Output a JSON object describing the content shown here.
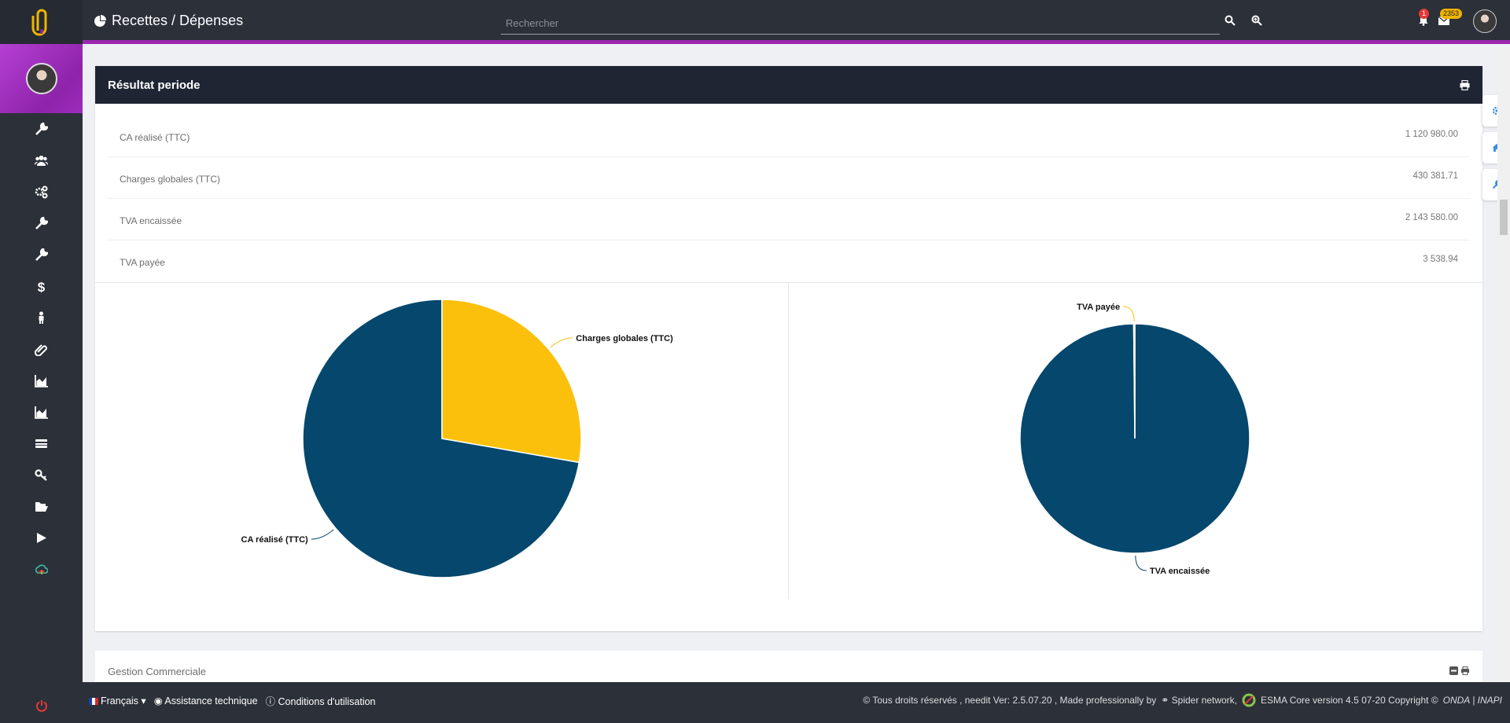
{
  "app": {
    "brand_color": "#f0b400",
    "accent": "#9b27af",
    "dark": "#2c3039"
  },
  "header": {
    "title": "Recettes / Dépenses",
    "search_placeholder": "Rechercher",
    "notifications_count": "1",
    "messages_count": "2353"
  },
  "sidebar": {
    "items": [
      {
        "icon": "wrench-icon"
      },
      {
        "icon": "users-icon"
      },
      {
        "icon": "cogs-icon"
      },
      {
        "icon": "wrench-icon"
      },
      {
        "icon": "wrench-icon"
      },
      {
        "icon": "dollar-icon"
      },
      {
        "icon": "male-icon"
      },
      {
        "icon": "paperclip-icon"
      },
      {
        "icon": "area-chart-icon"
      },
      {
        "icon": "area-chart-icon"
      },
      {
        "icon": "credit-card-icon"
      },
      {
        "icon": "key-icon"
      },
      {
        "icon": "folder-open-icon"
      },
      {
        "icon": "play-icon"
      },
      {
        "icon": "cloud-icon"
      }
    ]
  },
  "panel": {
    "title": "Résultat periode",
    "rows": [
      {
        "label": "CA réalisé (TTC)",
        "value": "1 120 980.00"
      },
      {
        "label": "Charges globales (TTC)",
        "value": "430 381.71"
      },
      {
        "label": "TVA encaissée",
        "value": "2 143 580.00"
      },
      {
        "label": "TVA payée",
        "value": "3 538.94"
      }
    ]
  },
  "chart_data": [
    {
      "type": "pie",
      "categories": [
        "CA réalisé (TTC)",
        "Charges globales (TTC)"
      ],
      "values": [
        1120980.0,
        430381.71
      ],
      "colors": [
        "#05476d",
        "#fbc00b"
      ]
    },
    {
      "type": "pie",
      "categories": [
        "TVA encaissée",
        "TVA payée"
      ],
      "values": [
        2143580.0,
        3538.94
      ],
      "colors": [
        "#05476d",
        "#fbc00b"
      ]
    }
  ],
  "gestion": {
    "title": "Gestion Commerciale"
  },
  "footer": {
    "language": "Français",
    "assistance": "Assistance technique",
    "conditions": "Conditions d'utilisation",
    "copyright": "© Tous droits réservés , needit Ver: 2.5.07.20 , Made professionally by",
    "spider": "Spider network,",
    "esma": "ESMA Core version 4.5 07-20 Copyright ©",
    "onda": "ONDA | INAPI"
  }
}
